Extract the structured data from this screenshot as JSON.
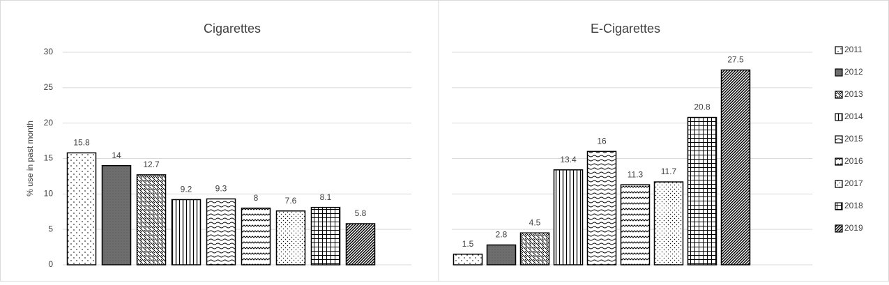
{
  "chart_data": [
    {
      "type": "bar",
      "title": "Cigarettes",
      "ylabel": "% use in past month",
      "values": [
        15.8,
        14,
        12.7,
        9.2,
        9.3,
        8,
        7.6,
        8.1,
        5.8
      ],
      "ylim": [
        0,
        30
      ],
      "yticks": [
        0,
        5,
        10,
        15,
        20,
        25,
        30
      ],
      "grid": true,
      "show_tick_labels": true
    },
    {
      "type": "bar",
      "title": "E-Cigarettes",
      "categories": [
        "2011",
        "2012",
        "2013",
        "2014",
        "2015",
        "2016",
        "2017",
        "2018",
        "2019"
      ],
      "values": [
        1.5,
        2.8,
        4.5,
        13.4,
        16,
        11.3,
        11.7,
        20.8,
        27.5
      ],
      "ylim": [
        0,
        30
      ],
      "yticks": [
        0,
        5,
        10,
        15,
        20,
        25,
        30
      ],
      "grid": true,
      "show_tick_labels": false,
      "legend": "right"
    }
  ]
}
